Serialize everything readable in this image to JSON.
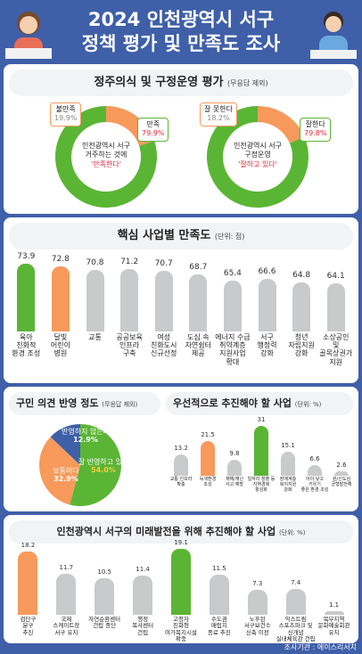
{
  "header": {
    "title_line1": "2024 인천광역시 서구",
    "title_line2": "정책 평가 및 만족도 조사",
    "source": "조사기관 : 에이스리서치"
  },
  "colors": {
    "green": "#5bb534",
    "orange": "#f79a5c",
    "gray": "#c8cacc",
    "blue": "#3f5fa8",
    "red": "#e2263b"
  },
  "section1": {
    "title": "정주의식 및 구정운영 평가",
    "note": "(무응답 제외)",
    "donut1": {
      "center_line1": "인천광역시 서구",
      "center_line2": "거주하는 것에",
      "center_line3": "'만족한다'",
      "chart_data": {
        "type": "pie",
        "categories": [
          "만족",
          "불만족"
        ],
        "values": [
          79.9,
          19.9
        ]
      },
      "labels": [
        {
          "name": "만족",
          "value": "79.9%"
        },
        {
          "name": "불만족",
          "value": "19.9%"
        }
      ]
    },
    "donut2": {
      "center_line1": "인천광역시 서구",
      "center_line2": "구정운영",
      "center_line3": "'잘하고 있다'",
      "chart_data": {
        "type": "pie",
        "categories": [
          "잘한다",
          "잘 못한다"
        ],
        "values": [
          79.8,
          18.2
        ]
      },
      "labels": [
        {
          "name": "잘한다",
          "value": "79.8%"
        },
        {
          "name": "잘 못한다",
          "value": "18.2%"
        }
      ]
    }
  },
  "section2": {
    "title": "핵심 사업별 만족도",
    "note": "(단위: 점)",
    "chart_data": {
      "type": "bar",
      "categories": [
        "육아\n친화적\n환경 조성",
        "달빛\n어린이\n병원",
        "교통",
        "공공보육\n인프라\n구축",
        "여성\n친화도시\n신규선정",
        "도심 속\n자연쉼터\n제공",
        "에너지 수급\n취약계층\n지원사업\n확대",
        "서구\n행정력\n강화",
        "청년\n자립지원\n강화",
        "소상공인\n및\n골목상권가\n지원"
      ],
      "values": [
        73.9,
        72.8,
        70.8,
        71.2,
        70.7,
        68.7,
        65.4,
        66.6,
        64.8,
        64.1
      ],
      "value_labels": [
        "73.9",
        "72.8",
        "70.8",
        "71.2",
        "70.7",
        "68.7",
        "65.4",
        "66.6",
        "64.8",
        "64.1"
      ],
      "highlight": [
        "green",
        "orange",
        "gray",
        "gray",
        "gray",
        "gray",
        "gray",
        "gray",
        "gray",
        "gray"
      ]
    }
  },
  "section3": {
    "title": "구민 의견 반영 정도",
    "note": "(무응답 제외)",
    "chart_data": {
      "type": "pie",
      "categories": [
        "잘 반영하고 있다",
        "보통이다",
        "반영하지 않는다"
      ],
      "values": [
        54.0,
        32.9,
        12.9
      ],
      "labels": [
        {
          "text1": "잘 반영하고",
          "text2": "있다",
          "value": "54.0%"
        },
        {
          "text1": "보통이다",
          "text2": "",
          "value": "32.9%"
        },
        {
          "text1": "반영하지",
          "text2": "않는다",
          "value": "12.9%"
        }
      ]
    }
  },
  "section4": {
    "title": "우선적으로 추진해야 할 사업",
    "note": "(단위: %)",
    "chart_data": {
      "type": "bar",
      "categories": [
        "교통 인프라\n확충",
        "녹색환경\n조성",
        "재해/재난\n사고 예방",
        "일자리 창출 등\n지역경제\n활성화",
        "장애계층\n복지지원\n강화",
        "아이 낳고\n키우기\n좋은 환경 조성",
        "원/신도심\n균형발전해"
      ],
      "values": [
        13.2,
        21.5,
        9.8,
        31,
        15.1,
        6.6,
        2.6
      ],
      "value_labels": [
        "13.2",
        "21.5",
        "9.8",
        "31",
        "15.1",
        "6.6",
        "2.6"
      ],
      "highlight": [
        "gray",
        "orange",
        "gray",
        "green",
        "gray",
        "gray",
        "gray"
      ]
    }
  },
  "section5": {
    "title": "인천광역시 서구의 미래발전을 위해 추진해야 할 사업",
    "note": "(단위: %)",
    "chart_data": {
      "type": "bar",
      "categories": [
        "검단구\n분구\n추진",
        "국제\n스케이트장\n서구 유치",
        "자연순환센터\n건립 중단",
        "행정\n복사센터\n건립",
        "고령자\n친화형\n여가복지시설\n확충",
        "수도권\n매립지\n종료 추진",
        "노후된\n서구보건소\n신축 이전",
        "익스트림\n스포츠파크 및\n신개념\n실내체육관 건립",
        "복부지역\n문화예술회관\n유치"
      ],
      "values": [
        18.2,
        11.7,
        10.5,
        11.4,
        19.1,
        11.5,
        7.3,
        7.4,
        1.1
      ],
      "value_labels": [
        "18.2",
        "11.7",
        "10.5",
        "11.4",
        "19.1",
        "11.5",
        "7.3",
        "7.4",
        "1.1"
      ],
      "highlight": [
        "orange",
        "gray",
        "gray",
        "gray",
        "green",
        "gray",
        "gray",
        "gray",
        "gray"
      ]
    }
  }
}
